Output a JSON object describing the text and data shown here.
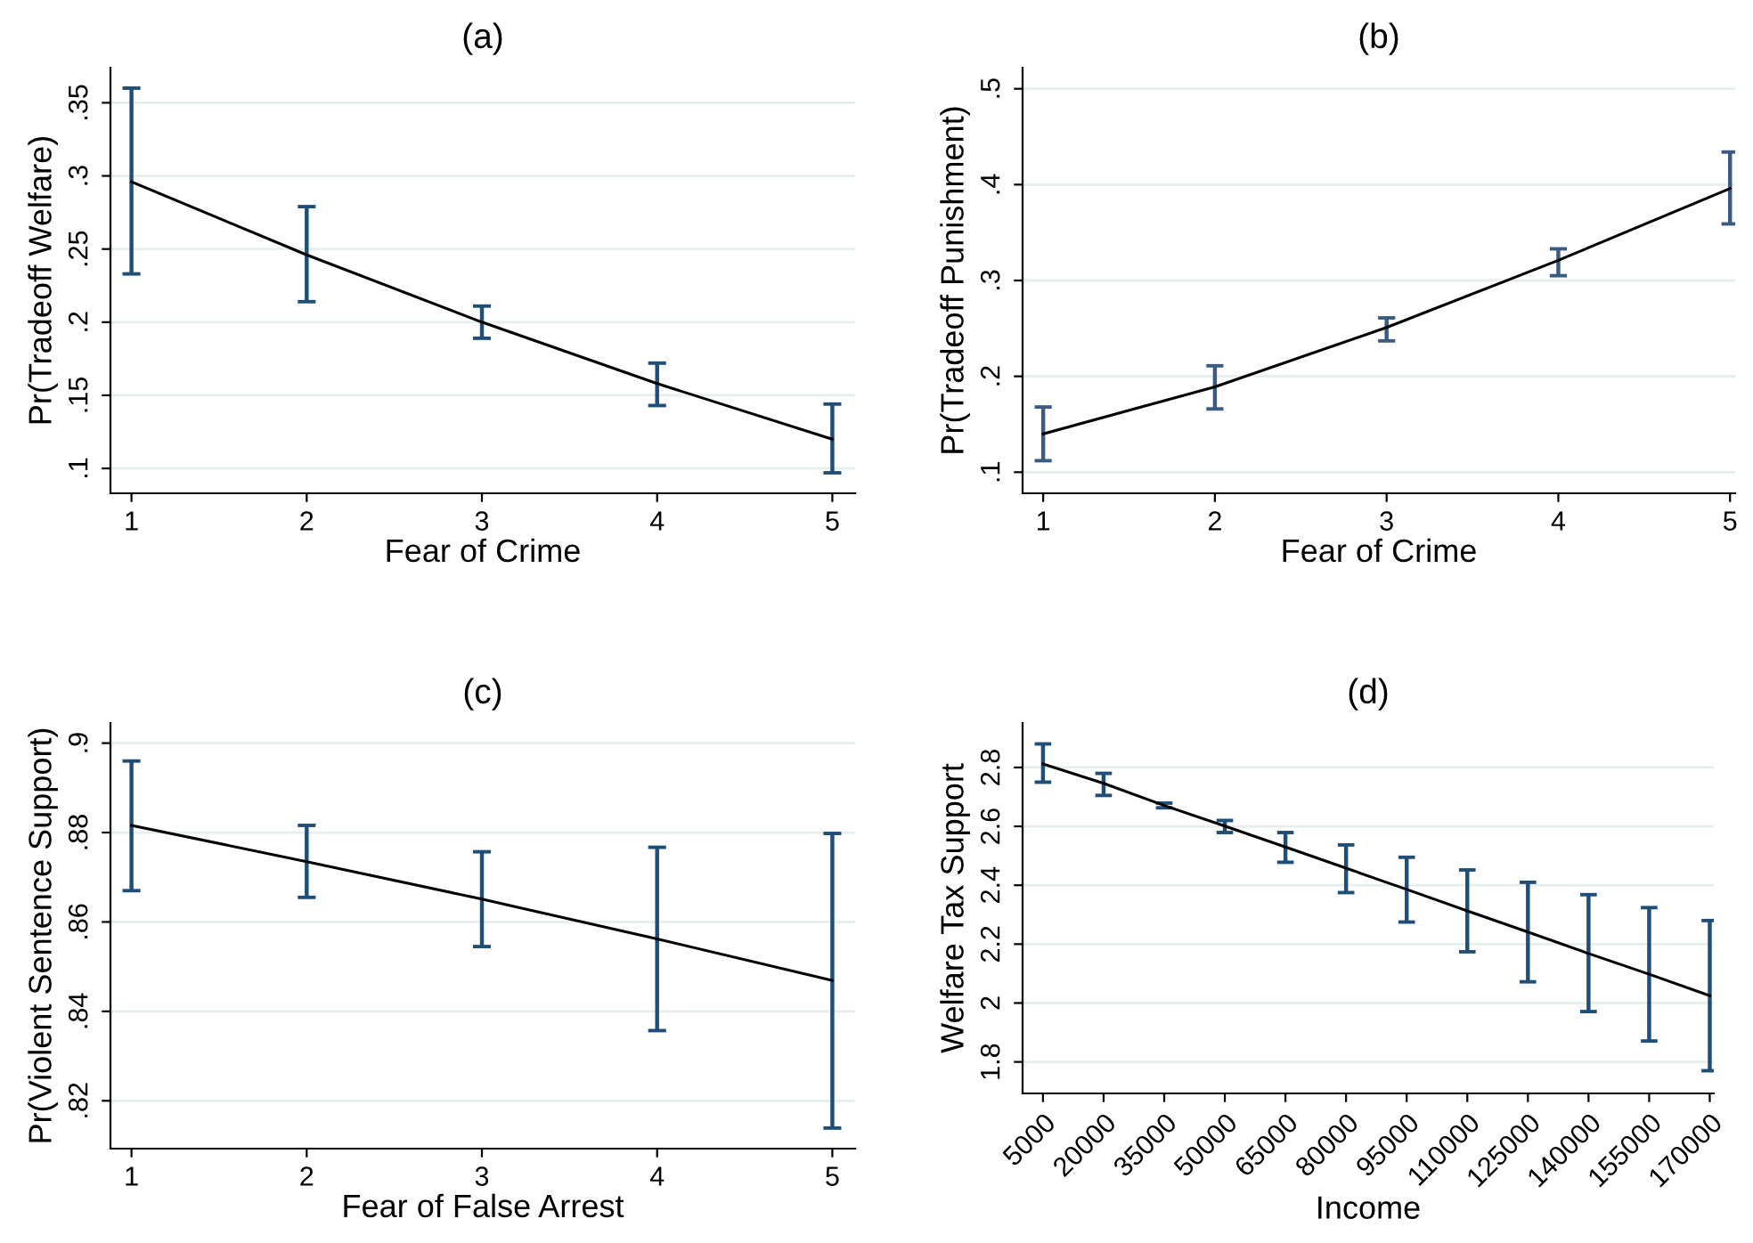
{
  "chart_data": [
    {
      "type": "line",
      "title": "(a)",
      "xlabel": "Fear of Crime",
      "ylabel": "Pr(Tradeoff Welfare)",
      "x": [
        1,
        2,
        3,
        4,
        5
      ],
      "xlim": [
        0.88,
        5.13
      ],
      "xticks": [
        1,
        2,
        3,
        4,
        5
      ],
      "ylim": [
        0.083,
        0.374
      ],
      "yticks": [
        {
          "value": 0.1,
          "label": ".1"
        },
        {
          "value": 0.15,
          "label": ".15"
        },
        {
          "value": 0.2,
          "label": ".2"
        },
        {
          "value": 0.25,
          "label": ".25"
        },
        {
          "value": 0.3,
          "label": ".3"
        },
        {
          "value": 0.35,
          "label": ".35"
        }
      ],
      "grid": "y",
      "series": [
        {
          "color": "#000000",
          "colors": [
            "#1f4e79",
            "#1f4e79",
            "#1f4e79",
            "#1f4e79",
            "#1f4e79"
          ],
          "values": [
            0.296,
            0.246,
            0.2,
            0.158,
            0.12
          ],
          "errors": [
            [
              0.233,
              0.36
            ],
            [
              0.214,
              0.279
            ],
            [
              0.189,
              0.211
            ],
            [
              0.143,
              0.172
            ],
            [
              0.097,
              0.144
            ]
          ]
        }
      ]
    },
    {
      "type": "line",
      "title": "(b)",
      "xlabel": "Fear of Crime",
      "ylabel": "Pr(Tradeoff Punishment)",
      "x": [
        1,
        2,
        3,
        4,
        5
      ],
      "xlim": [
        0.88,
        5.03
      ],
      "xticks": [
        1,
        2,
        3,
        4,
        5
      ],
      "ylim": [
        0.078,
        0.522
      ],
      "yticks": [
        {
          "value": 0.1,
          "label": ".1"
        },
        {
          "value": 0.2,
          "label": ".2"
        },
        {
          "value": 0.3,
          "label": ".3"
        },
        {
          "value": 0.4,
          "label": ".4"
        },
        {
          "value": 0.5,
          "label": ".5"
        }
      ],
      "grid": "y",
      "series": [
        {
          "color": "#000000",
          "colors": [
            "#3b5b82",
            "#3b5b82",
            "#3b5b82",
            "#3b5b82",
            "#3b5b82"
          ],
          "values": [
            0.14,
            0.189,
            0.251,
            0.321,
            0.396
          ],
          "errors": [
            [
              0.112,
              0.168
            ],
            [
              0.166,
              0.211
            ],
            [
              0.237,
              0.261
            ],
            [
              0.305,
              0.333
            ],
            [
              0.359,
              0.434
            ]
          ]
        }
      ]
    },
    {
      "type": "line",
      "title": "(c)",
      "xlabel": "Fear of False Arrest",
      "ylabel": "Pr(Violent Sentence Support)",
      "x": [
        1,
        2,
        3,
        4,
        5
      ],
      "xlim": [
        0.88,
        5.13
      ],
      "xticks": [
        1,
        2,
        3,
        4,
        5
      ],
      "ylim": [
        0.8093,
        0.9045
      ],
      "yticks": [
        {
          "value": 0.82,
          "label": ".82"
        },
        {
          "value": 0.84,
          "label": ".84"
        },
        {
          "value": 0.86,
          "label": ".86"
        },
        {
          "value": 0.88,
          "label": ".88"
        },
        {
          "value": 0.9,
          "label": ".9"
        }
      ],
      "grid": "y",
      "series": [
        {
          "color": "#000000",
          "colors": [
            "#1f4e79",
            "#1f4e79",
            "#1f4e79",
            "#1f4e79",
            "#1f4e79"
          ],
          "values": [
            0.8816,
            0.8735,
            0.8651,
            0.8562,
            0.8469
          ],
          "errors": [
            [
              0.867,
              0.896
            ],
            [
              0.8655,
              0.8816
            ],
            [
              0.8545,
              0.8757
            ],
            [
              0.8357,
              0.8767
            ],
            [
              0.8139,
              0.8798
            ]
          ]
        }
      ]
    },
    {
      "type": "line",
      "title": "(d)",
      "xlabel": "Income",
      "ylabel": "Welfare Tax Support",
      "x": [
        5000,
        20000,
        35000,
        50000,
        65000,
        80000,
        95000,
        110000,
        125000,
        140000,
        155000,
        170000
      ],
      "xlim": [
        -50,
        171000
      ],
      "xticks": [
        5000,
        20000,
        35000,
        50000,
        65000,
        80000,
        95000,
        110000,
        125000,
        140000,
        155000,
        170000
      ],
      "ylim": [
        1.693,
        2.951
      ],
      "yticks": [
        1.8,
        2,
        2.2,
        2.4,
        2.6,
        2.8
      ],
      "grid": "y",
      "series": [
        {
          "color": "#000000",
          "colors": [
            "#1f4e79",
            "#1f4e79",
            "#1f4e79",
            "#1f4e79",
            "#1f4e79",
            "#1f4e79",
            "#1f4e79",
            "#1f4e79",
            "#1f4e79",
            "#1f4e79",
            "#1f4e79",
            "#1f4e79"
          ],
          "values": [
            2.812,
            2.746,
            2.671,
            2.601,
            2.53,
            2.458,
            2.386,
            2.313,
            2.241,
            2.168,
            2.098,
            2.025
          ],
          "errors": [
            [
              2.75,
              2.88
            ],
            [
              2.705,
              2.78
            ],
            [
              2.663,
              2.679
            ],
            [
              2.579,
              2.62
            ],
            [
              2.478,
              2.579
            ],
            [
              2.375,
              2.537
            ],
            [
              2.275,
              2.495
            ],
            [
              2.174,
              2.452
            ],
            [
              2.072,
              2.41
            ],
            [
              1.971,
              2.368
            ],
            [
              1.871,
              2.324
            ],
            [
              1.77,
              2.28
            ]
          ]
        }
      ]
    }
  ]
}
